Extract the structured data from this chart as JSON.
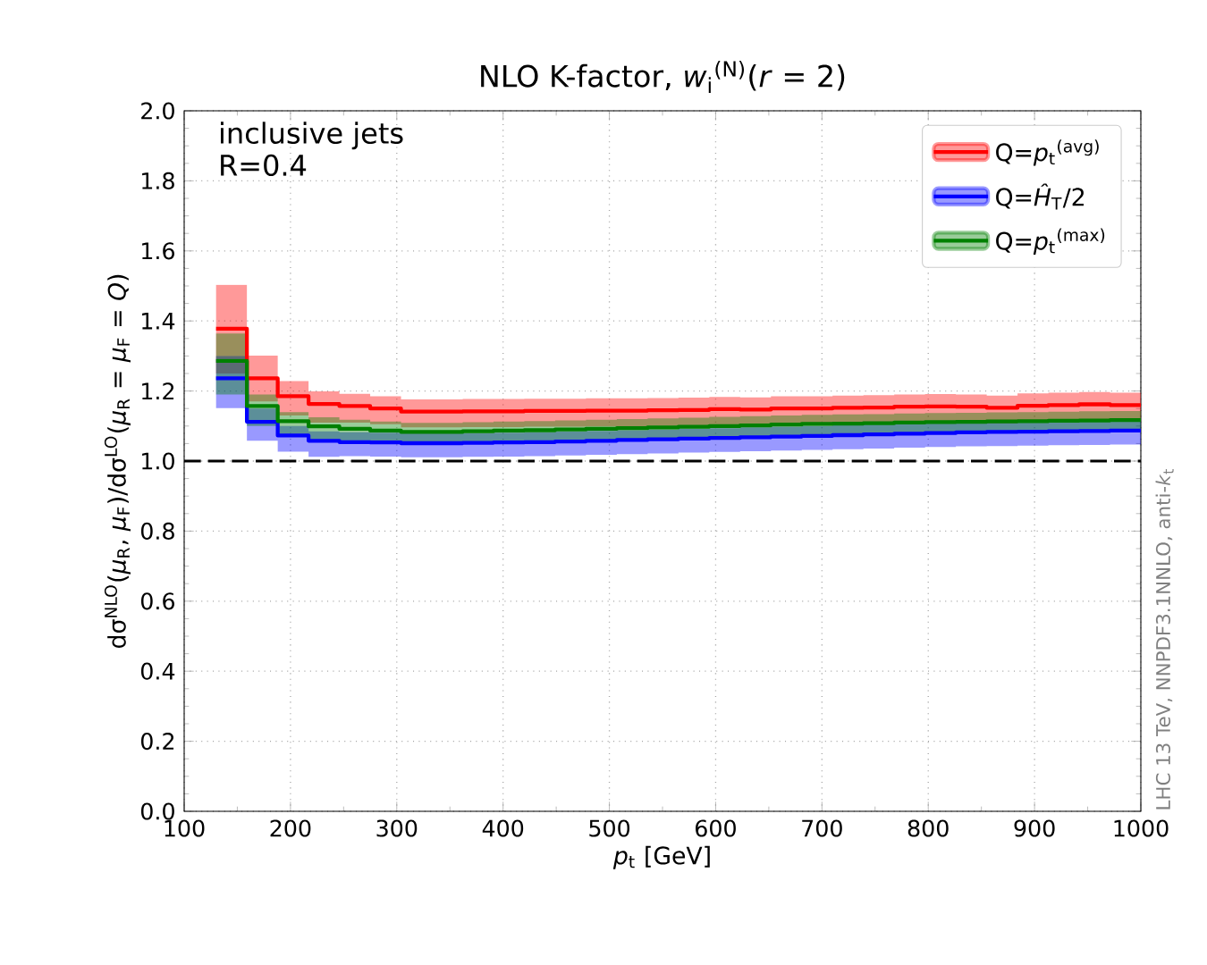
{
  "chart_data": {
    "type": "step",
    "title": "NLO K-factor, *w*$_{i}$$^{(N)}$(*r* = 2)",
    "xlabel": "*p*$_{t}$ [GeV]",
    "ylabel": "dσ$^{NLO}$(*μ*$_{R}$, *μ*$_{F}$)/dσ$^{LO}$(*μ*$_{R}$ = *μ*$_{F}$ = *Q*)",
    "annotations": [
      "inclusive jets",
      "R=0.4",
      "LHC 13 TeV, NNPDF3.1NNLO, anti-*k*$_{t}$"
    ],
    "x": [
      130,
      159,
      188,
      217,
      246,
      275,
      304,
      333,
      362,
      391,
      420,
      449,
      478,
      507,
      536,
      565,
      594,
      623,
      652,
      681,
      710,
      739,
      768,
      797,
      826,
      855,
      884,
      913,
      942,
      971,
      1000
    ],
    "series": [
      {
        "name": "Q=*p*$_{t}$$^{(avg)}$",
        "color": "#ff0000",
        "values": [
          1.378,
          1.236,
          1.185,
          1.163,
          1.157,
          1.15,
          1.141,
          1.141,
          1.142,
          1.142,
          1.143,
          1.143,
          1.144,
          1.144,
          1.145,
          1.146,
          1.148,
          1.147,
          1.15,
          1.15,
          1.152,
          1.153,
          1.155,
          1.156,
          1.155,
          1.152,
          1.158,
          1.16,
          1.162,
          1.16,
          1.16
        ],
        "lower": [
          1.25,
          1.17,
          1.13,
          1.11,
          1.11,
          1.105,
          1.096,
          1.096,
          1.097,
          1.097,
          1.098,
          1.098,
          1.099,
          1.099,
          1.1,
          1.101,
          1.103,
          1.102,
          1.105,
          1.105,
          1.107,
          1.108,
          1.11,
          1.111,
          1.11,
          1.107,
          1.113,
          1.115,
          1.117,
          1.115,
          1.115
        ],
        "upper": [
          1.503,
          1.301,
          1.228,
          1.199,
          1.192,
          1.185,
          1.176,
          1.176,
          1.177,
          1.177,
          1.178,
          1.178,
          1.179,
          1.179,
          1.18,
          1.181,
          1.183,
          1.182,
          1.185,
          1.185,
          1.187,
          1.188,
          1.19,
          1.191,
          1.19,
          1.187,
          1.193,
          1.195,
          1.197,
          1.195,
          1.195
        ]
      },
      {
        "name": "Q=*Ĥ*$_{T}$/2",
        "color": "#0000ff",
        "values": [
          1.236,
          1.112,
          1.073,
          1.058,
          1.054,
          1.053,
          1.051,
          1.051,
          1.052,
          1.053,
          1.054,
          1.056,
          1.058,
          1.06,
          1.062,
          1.064,
          1.066,
          1.068,
          1.07,
          1.072,
          1.074,
          1.076,
          1.078,
          1.08,
          1.082,
          1.083,
          1.084,
          1.085,
          1.086,
          1.087,
          1.087
        ],
        "lower": [
          1.151,
          1.058,
          1.027,
          1.012,
          1.014,
          1.013,
          1.011,
          1.011,
          1.012,
          1.013,
          1.014,
          1.016,
          1.018,
          1.02,
          1.022,
          1.024,
          1.026,
          1.028,
          1.03,
          1.032,
          1.034,
          1.036,
          1.038,
          1.04,
          1.042,
          1.043,
          1.044,
          1.045,
          1.046,
          1.047,
          1.047
        ],
        "upper": [
          1.3,
          1.15,
          1.1,
          1.085,
          1.082,
          1.081,
          1.079,
          1.079,
          1.08,
          1.081,
          1.082,
          1.084,
          1.086,
          1.088,
          1.09,
          1.092,
          1.094,
          1.096,
          1.098,
          1.1,
          1.102,
          1.104,
          1.106,
          1.108,
          1.11,
          1.111,
          1.112,
          1.113,
          1.114,
          1.115,
          1.115
        ]
      },
      {
        "name": "Q=*p*$_{t}$$^{(max)}$",
        "color": "#008000",
        "values": [
          1.286,
          1.157,
          1.114,
          1.099,
          1.092,
          1.087,
          1.083,
          1.083,
          1.085,
          1.087,
          1.088,
          1.09,
          1.092,
          1.094,
          1.096,
          1.098,
          1.1,
          1.102,
          1.104,
          1.106,
          1.107,
          1.108,
          1.11,
          1.111,
          1.112,
          1.113,
          1.114,
          1.115,
          1.116,
          1.117,
          1.117
        ],
        "lower": [
          1.19,
          1.1,
          1.07,
          1.06,
          1.056,
          1.052,
          1.049,
          1.049,
          1.051,
          1.053,
          1.054,
          1.056,
          1.058,
          1.06,
          1.062,
          1.064,
          1.066,
          1.068,
          1.07,
          1.072,
          1.073,
          1.074,
          1.076,
          1.077,
          1.078,
          1.079,
          1.08,
          1.081,
          1.082,
          1.083,
          1.083
        ],
        "upper": [
          1.364,
          1.19,
          1.14,
          1.125,
          1.118,
          1.113,
          1.109,
          1.109,
          1.111,
          1.113,
          1.114,
          1.116,
          1.118,
          1.12,
          1.122,
          1.124,
          1.126,
          1.128,
          1.13,
          1.132,
          1.133,
          1.134,
          1.136,
          1.137,
          1.138,
          1.139,
          1.14,
          1.141,
          1.142,
          1.143,
          1.143
        ]
      }
    ],
    "xlim": [
      100,
      1000
    ],
    "ylim": [
      0,
      2.0
    ],
    "xticks": [
      100,
      200,
      300,
      400,
      500,
      600,
      700,
      800,
      900,
      1000
    ],
    "yticks": [
      {
        "value": 0,
        "label": "0.0"
      },
      {
        "value": 0.2,
        "label": "0.2"
      },
      {
        "value": 0.4,
        "label": "0.4"
      },
      {
        "value": 0.6,
        "label": "0.6"
      },
      {
        "value": 0.8,
        "label": "0.8"
      },
      {
        "value": 1.0,
        "label": "1.0"
      },
      {
        "value": 1.2,
        "label": "1.2"
      },
      {
        "value": 1.4,
        "label": "1.4"
      },
      {
        "value": 1.6,
        "label": "1.6"
      },
      {
        "value": 1.8,
        "label": "1.8"
      },
      {
        "value": 2.0,
        "label": "2.0"
      }
    ],
    "ref_lines": [
      {
        "axis": "y",
        "value": 1.0,
        "color": "#000000",
        "line_style": "dashed"
      }
    ],
    "grid": true,
    "legend": "top right"
  }
}
